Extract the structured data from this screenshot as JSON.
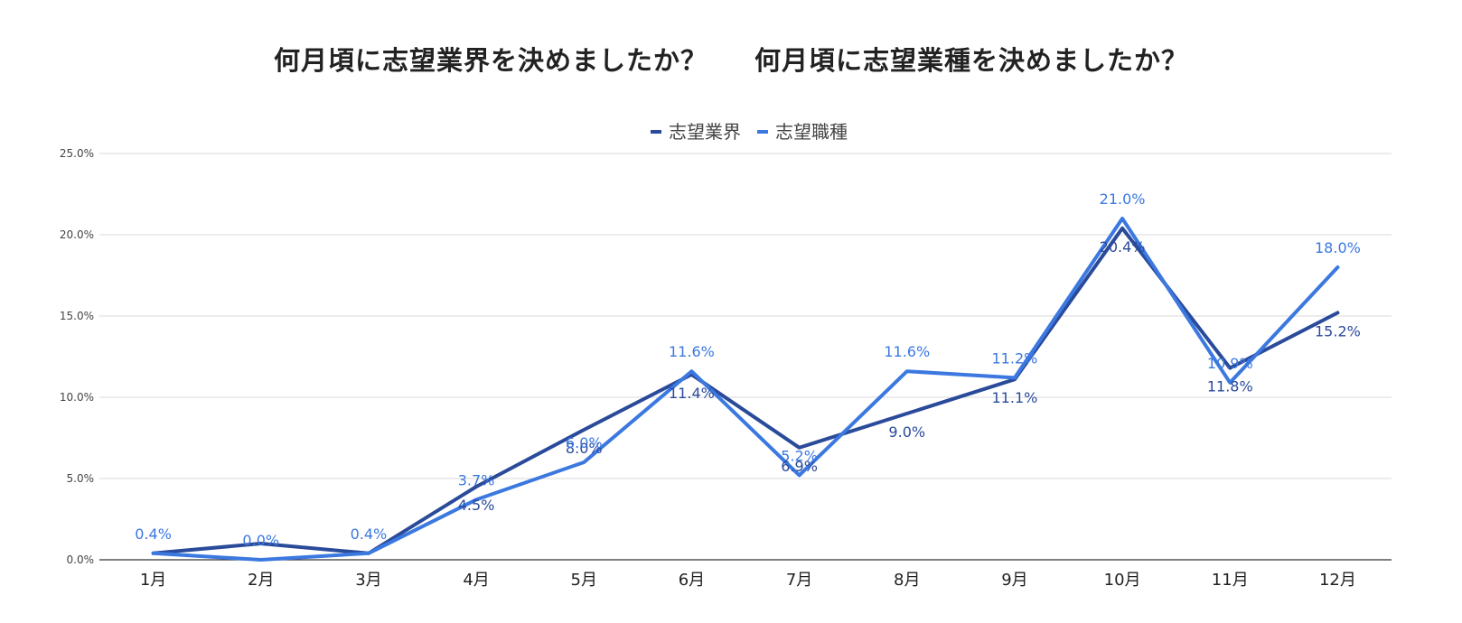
{
  "titles": [
    "何月頃に志望業界を決めましたか？",
    "何月頃に志望業種を決めましたか？"
  ],
  "colors": {
    "series1": "#2a4a9a",
    "series2": "#3b78e0",
    "grid": "#d9d9d9",
    "axis": "#333333"
  },
  "chart_data": {
    "type": "line",
    "categories": [
      "1月",
      "2月",
      "3月",
      "4月",
      "5月",
      "6月",
      "7月",
      "8月",
      "9月",
      "10月",
      "11月",
      "12月"
    ],
    "yticks": [
      "0.0%",
      "5.0%",
      "10.0%",
      "15.0%",
      "20.0%",
      "25.0%"
    ],
    "ylim": [
      0,
      25
    ],
    "legend_position": "top-center",
    "grid": true,
    "series": [
      {
        "name": "志望業界",
        "values": [
          0.4,
          1.0,
          0.4,
          4.5,
          8.0,
          11.4,
          6.9,
          9.0,
          11.1,
          20.4,
          11.8,
          15.2
        ],
        "labels": [
          "",
          "",
          "",
          "4.5%",
          "8.0%",
          "11.4%",
          "6.9%",
          "9.0%",
          "11.1%",
          "20.4%",
          "11.8%",
          "15.2%"
        ]
      },
      {
        "name": "志望職種",
        "values": [
          0.4,
          0.0,
          0.4,
          3.7,
          6.0,
          11.6,
          5.2,
          11.6,
          11.2,
          21.0,
          10.9,
          18.0
        ],
        "labels": [
          "0.4%",
          "0.0%",
          "0.4%",
          "3.7%",
          "6.0%",
          "11.6%",
          "5.2%",
          "11.6%",
          "11.2%",
          "21.0%",
          "10.9%",
          "18.0%"
        ]
      }
    ]
  }
}
